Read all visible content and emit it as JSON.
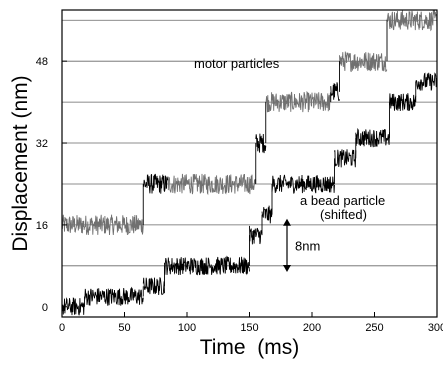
{
  "chart_data": {
    "type": "line",
    "xlabel": "Time  (ms)",
    "ylabel": "Displacement (nm)",
    "xlim": [
      0,
      300
    ],
    "ylim": [
      -2,
      58
    ],
    "x_ticks": [
      {
        "value": 0,
        "label": "0"
      },
      {
        "value": 50,
        "label": "50"
      },
      {
        "value": 100,
        "label": "100"
      },
      {
        "value": 150,
        "label": "150"
      },
      {
        "value": 200,
        "label": "200"
      },
      {
        "value": 250,
        "label": "250"
      },
      {
        "value": 300,
        "label": "300"
      }
    ],
    "y_ticks": [
      {
        "value": 0,
        "label": "0"
      },
      {
        "value": 16,
        "label": "16"
      },
      {
        "value": 32,
        "label": "32"
      },
      {
        "value": 48,
        "label": "48"
      }
    ],
    "gridlines_y": [
      8,
      16,
      24,
      32,
      40,
      48,
      56
    ],
    "grid": "horizontal",
    "series": [
      {
        "name": "motor particles",
        "color": "#000000",
        "noise_color": "#707070",
        "noise": 2.0,
        "segments": [
          {
            "x0": 0,
            "x1": 65,
            "y": 16
          },
          {
            "x0": 65,
            "x1": 85,
            "y": 24
          },
          {
            "x0": 85,
            "x1": 155,
            "y": 24
          },
          {
            "x0": 155,
            "x1": 163,
            "y": 32
          },
          {
            "x0": 163,
            "x1": 215,
            "y": 40
          },
          {
            "x0": 215,
            "x1": 222,
            "y": 42
          },
          {
            "x0": 222,
            "x1": 260,
            "y": 48
          },
          {
            "x0": 260,
            "x1": 300,
            "y": 56
          }
        ]
      },
      {
        "name": "a bead particle (shifted)",
        "color": "#000000",
        "noise": 1.8,
        "segments": [
          {
            "x0": 0,
            "x1": 18,
            "y": 0
          },
          {
            "x0": 18,
            "x1": 65,
            "y": 2
          },
          {
            "x0": 65,
            "x1": 82,
            "y": 4
          },
          {
            "x0": 82,
            "x1": 150,
            "y": 8
          },
          {
            "x0": 150,
            "x1": 160,
            "y": 14
          },
          {
            "x0": 160,
            "x1": 168,
            "y": 18
          },
          {
            "x0": 168,
            "x1": 218,
            "y": 24
          },
          {
            "x0": 218,
            "x1": 235,
            "y": 29
          },
          {
            "x0": 235,
            "x1": 262,
            "y": 33
          },
          {
            "x0": 262,
            "x1": 283,
            "y": 40
          },
          {
            "x0": 283,
            "x1": 300,
            "y": 44
          }
        ]
      }
    ],
    "annotations": {
      "motor_label": "motor particles",
      "bead_label_line1": "a bead particle",
      "bead_label_line2": "(shifted)",
      "step_label": "8nm",
      "step_arrow": {
        "x": 180,
        "y_from": 7,
        "y_to": 17
      }
    }
  }
}
